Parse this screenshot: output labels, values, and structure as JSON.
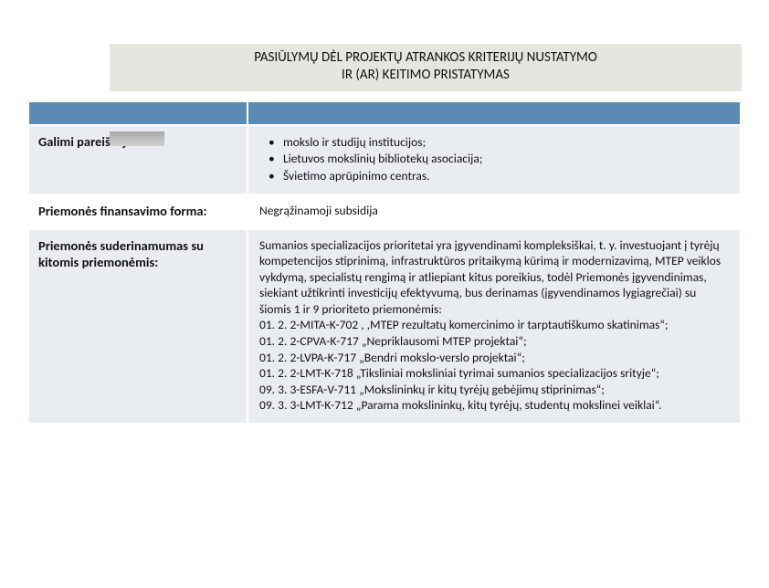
{
  "title": {
    "line1": "PASIŪLYMŲ DĖL PROJEKTŲ ATRANKOS KRITERIJŲ NUSTATYMO",
    "line2": "IR (AR) KEITIMO PRISTATYMAS"
  },
  "rows": {
    "applicants": {
      "label": "Galimi pareiškėjai:",
      "b1": "mokslo ir studijų institucijos;",
      "b2": "Lietuvos mokslinių bibliotekų asociacija;",
      "b3": "Švietimo aprūpinimo centras."
    },
    "form": {
      "label": "Priemonės finansavimo forma:",
      "value": "Negrąžinamoji subsidija"
    },
    "compat": {
      "label": "Priemonės suderinamumas su kitomis priemonėmis:",
      "value": "Sumanios specializacijos prioritetai yra įgyvendinami kompleksiškai, t. y. investuojant į tyrėjų kompetencijos stiprinimą, infrastruktūros pritaikymą kūrimą ir modernizavimą, MTEP veiklos vykdymą, specialistų rengimą ir atliepiant kitus poreikius, todėl Priemonės įgyvendinimas, siekiant užtikrinti investicijų efektyvumą, bus derinamas (įgyvendinamos lygiagrečiai) su šiomis 1 ir 9 prioriteto priemonėmis:\n01. 2. 2-MITA-K-702 , ,MTEP rezultatų komercinimo ir tarptautiškumo skatinimas“;\n01. 2. 2-CPVA-K-717 „Nepriklausomi MTEP projektai“;\n01. 2. 2-LVPA-K-717 „Bendri mokslo-verslo projektai“;\n01. 2. 2-LMT-K-718 „Tiksliniai moksliniai tyrimai sumanios specializacijos srityje“;\n09. 3. 3-ESFA-V-711 „Mokslininkų ir kitų tyrėjų gebėjimų stiprinimas“;\n09. 3. 3-LMT-K-712 „Parama mokslininkų, kitų tyrėjų, studentų mokslinei veiklai“."
    }
  },
  "colors": {
    "header_band": "#5b8bb5",
    "row_alt_bg": "#e9edf2",
    "title_bg": "#e6e6e0"
  }
}
